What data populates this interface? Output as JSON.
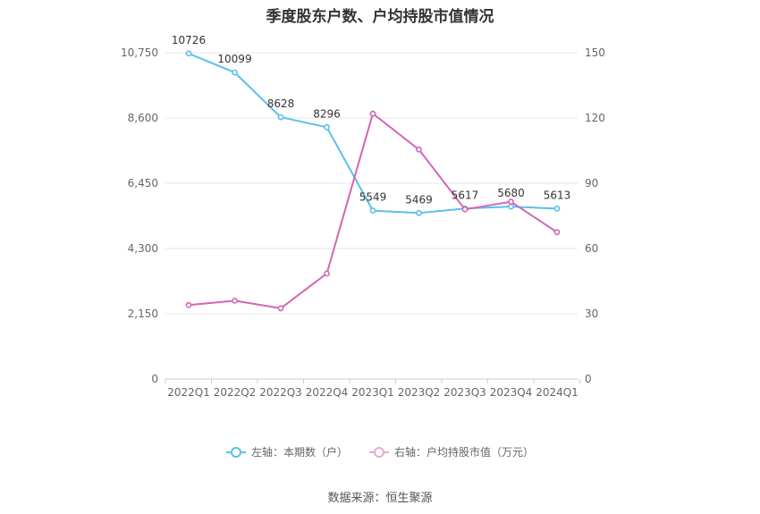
{
  "chart_data": {
    "type": "line",
    "title": "季度股东户数、户均持股市值情况",
    "categories": [
      "2022Q1",
      "2022Q2",
      "2022Q3",
      "2022Q4",
      "2023Q1",
      "2023Q2",
      "2023Q3",
      "2023Q4",
      "2024Q1"
    ],
    "left_axis": {
      "ylim": [
        0,
        10750
      ],
      "ticks": [
        0,
        2150,
        4300,
        6450,
        8600,
        10750
      ],
      "tick_labels": [
        "0",
        "2,150",
        "4,300",
        "6,450",
        "8,600",
        "10,750"
      ]
    },
    "right_axis": {
      "ylim": [
        0,
        150
      ],
      "ticks": [
        0,
        30,
        60,
        90,
        120,
        150
      ],
      "tick_labels": [
        "0",
        "30",
        "60",
        "90",
        "120",
        "150"
      ]
    },
    "series": [
      {
        "name": "左轴：本期数（户）",
        "axis": "left",
        "color": "#5bc0eb",
        "values": [
          10726,
          10099,
          8628,
          8296,
          5549,
          5469,
          5617,
          5680,
          5613
        ],
        "data_labels": [
          "10726",
          "10099",
          "8628",
          "8296",
          "5549",
          "5469",
          "5617",
          "5680",
          "5613"
        ]
      },
      {
        "name": "右轴：户均持股市值（万元）",
        "axis": "right",
        "color": "#d465b3",
        "values": [
          34,
          36,
          32.5,
          48.5,
          122,
          105.5,
          78,
          81.5,
          67.5
        ]
      }
    ],
    "grid": true,
    "legend_position": "bottom"
  },
  "source_text": "数据来源：恒生聚源"
}
